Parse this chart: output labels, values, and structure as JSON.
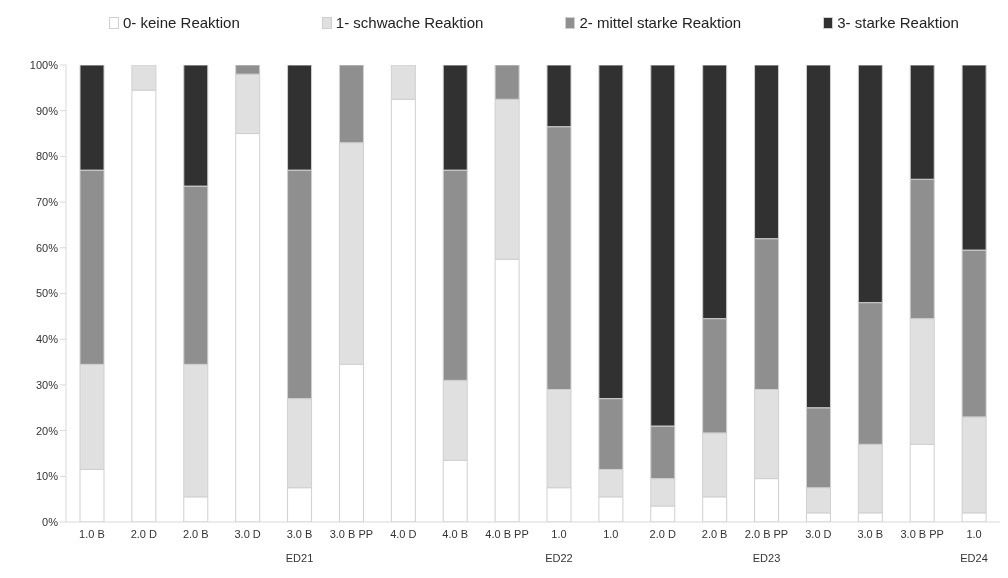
{
  "chart_data": {
    "type": "bar",
    "stacked": true,
    "legend": "top",
    "categories": [
      "1.0 B",
      "2.0 D",
      "2.0 B",
      "3.0 D",
      "3.0 B",
      "3.0 B PP",
      "4.0 D",
      "4.0 B",
      "4.0 B PP",
      "1.0",
      "1.0",
      "2.0 D",
      "2.0 B",
      "2.0 B PP",
      "3.0 D",
      "3.0 B",
      "3.0 B PP",
      "1.0"
    ],
    "series": [
      {
        "name": "0- keine Reaktion",
        "color": "#ffffff",
        "values": [
          11.5,
          94.5,
          5.5,
          85,
          7.5,
          34.5,
          92.5,
          13.5,
          57.5,
          7.5,
          5.5,
          3.5,
          5.5,
          9.5,
          2,
          2,
          17,
          2
        ]
      },
      {
        "name": "1- schwache Reaktion",
        "color": "#e0e0e0",
        "values": [
          23,
          5.5,
          29,
          13,
          19.5,
          48.5,
          7.5,
          17.5,
          35,
          21.5,
          6,
          6,
          14,
          19.5,
          5.5,
          15,
          27.5,
          21
        ]
      },
      {
        "name": "2- mittel starke Reaktion",
        "color": "#8f8f8f",
        "values": [
          42.5,
          0,
          39,
          2,
          50,
          17,
          0,
          46,
          7.5,
          57.5,
          15.5,
          11.5,
          25,
          33,
          17.5,
          31,
          30.5,
          36.5
        ]
      },
      {
        "name": "3- starke Reaktion",
        "color": "#313131",
        "values": [
          23,
          0,
          26.5,
          0,
          23,
          0,
          0,
          23,
          0,
          13.5,
          73,
          79,
          55.5,
          38,
          75,
          52,
          25,
          40.5
        ]
      }
    ],
    "ylim": [
      0,
      100
    ],
    "yticks": [
      {
        "value": 0,
        "label": "0%"
      },
      {
        "value": 10,
        "label": "10%"
      },
      {
        "value": 20,
        "label": "20%"
      },
      {
        "value": 30,
        "label": "30%"
      },
      {
        "value": 40,
        "label": "40%"
      },
      {
        "value": 50,
        "label": "50%"
      },
      {
        "value": 60,
        "label": "60%"
      },
      {
        "value": 70,
        "label": "70%"
      },
      {
        "value": 80,
        "label": "80%"
      },
      {
        "value": 90,
        "label": "90%"
      },
      {
        "value": 100,
        "label": "100%"
      }
    ],
    "annotations": [
      "ED21",
      "ED22",
      "ED23",
      "ED24"
    ]
  }
}
